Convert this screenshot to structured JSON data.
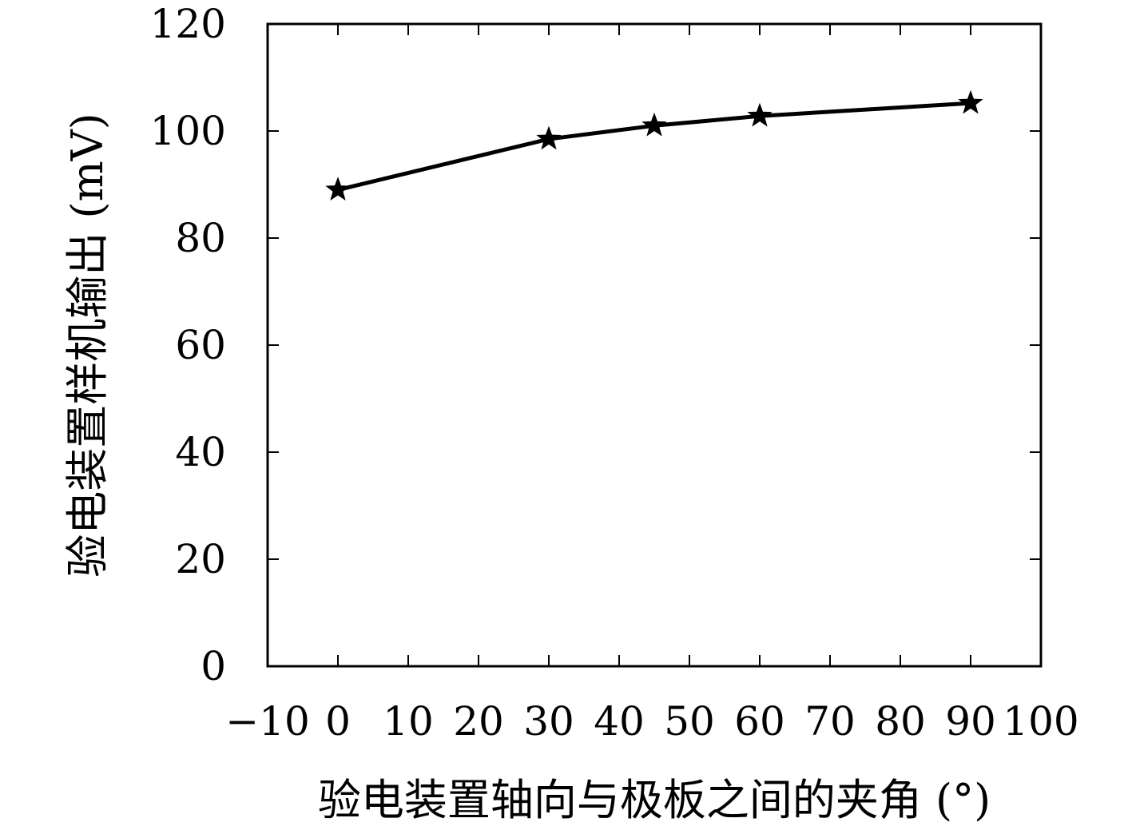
{
  "chart_data": {
    "type": "line",
    "title": "",
    "xlabel": "验电装置轴向与极板之间的夹角 (°)",
    "ylabel": "验电装置样机输出 (mV)",
    "xlim": [
      -10,
      100
    ],
    "ylim": [
      0,
      120
    ],
    "x_ticks": [
      -10,
      0,
      10,
      20,
      30,
      40,
      50,
      60,
      70,
      80,
      90,
      100
    ],
    "x_tick_labels": [
      "−10",
      "0",
      "10",
      "20",
      "30",
      "40",
      "50",
      "60",
      "70",
      "80",
      "90",
      "100"
    ],
    "y_ticks": [
      0,
      20,
      40,
      60,
      80,
      100,
      120
    ],
    "y_tick_labels": [
      "0",
      "20",
      "40",
      "60",
      "80",
      "100",
      "120"
    ],
    "grid": false,
    "legend": "none",
    "series": [
      {
        "marker": "star",
        "color": "#000000",
        "x": [
          0,
          30,
          45,
          60,
          90
        ],
        "y": [
          89,
          98.5,
          101,
          102.8,
          105.2
        ]
      }
    ]
  }
}
